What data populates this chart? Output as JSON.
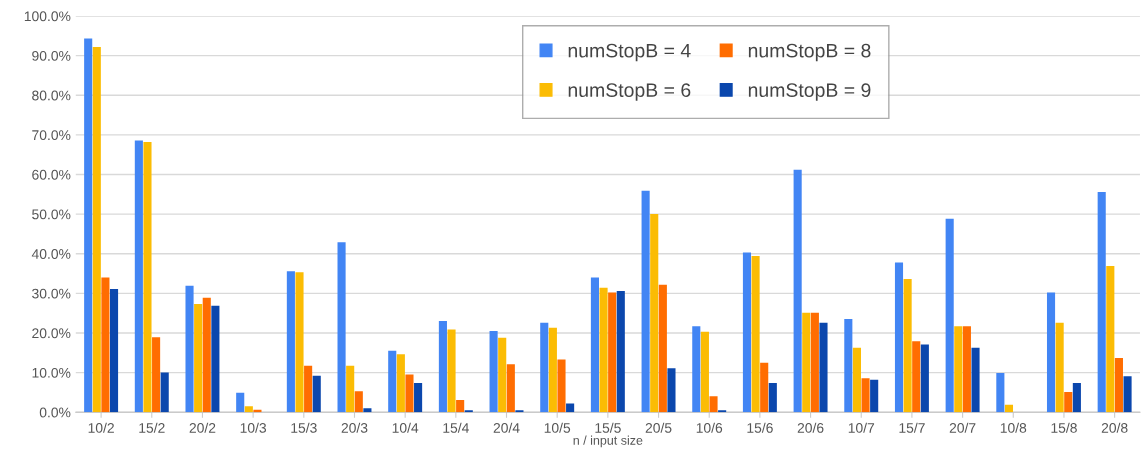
{
  "chart_data": {
    "type": "bar",
    "xlabel": "n / input size",
    "categories": [
      "10/2",
      "15/2",
      "20/2",
      "10/3",
      "15/3",
      "20/3",
      "10/4",
      "15/4",
      "20/4",
      "10/5",
      "15/5",
      "20/5",
      "10/6",
      "15/6",
      "20/6",
      "10/7",
      "15/7",
      "20/7",
      "10/8",
      "15/8",
      "20/8"
    ],
    "series": [
      {
        "name": "numStopB = 4",
        "color": "#4285f4",
        "values": [
          94.3,
          68.6,
          31.9,
          4.9,
          35.6,
          42.9,
          15.5,
          23.0,
          20.5,
          22.6,
          34.0,
          55.9,
          21.7,
          40.3,
          61.2,
          23.5,
          37.8,
          48.8,
          9.9,
          30.2,
          55.6
        ]
      },
      {
        "name": "numStopB = 6",
        "color": "#fbbc04",
        "values": [
          92.2,
          68.2,
          27.3,
          1.5,
          35.3,
          11.7,
          14.6,
          20.9,
          18.8,
          21.3,
          31.4,
          50.0,
          20.3,
          39.4,
          25.1,
          16.3,
          33.6,
          21.7,
          1.9,
          22.6,
          36.9
        ]
      },
      {
        "name": "numStopB = 8",
        "color": "#ff6d01",
        "values": [
          34.0,
          18.9,
          28.9,
          0.6,
          11.7,
          5.3,
          9.5,
          3.1,
          12.1,
          13.3,
          30.2,
          32.2,
          4.0,
          12.5,
          25.1,
          8.6,
          17.9,
          21.7,
          0,
          5.1,
          13.7
        ]
      },
      {
        "name": "numStopB = 9",
        "color": "#0b47ad",
        "values": [
          31.1,
          10.0,
          26.9,
          0,
          9.2,
          1.0,
          7.4,
          0.5,
          0.5,
          2.2,
          30.6,
          11.1,
          0.5,
          7.4,
          22.6,
          8.2,
          17.1,
          16.3,
          0,
          7.4,
          9.1
        ]
      }
    ],
    "ylim": [
      0,
      100
    ],
    "yticks": [
      {
        "value": 0,
        "label": "0.0%"
      },
      {
        "value": 10,
        "label": "10.0%"
      },
      {
        "value": 20,
        "label": "20.0%"
      },
      {
        "value": 30,
        "label": "30.0%"
      },
      {
        "value": 40,
        "label": "40.0%"
      },
      {
        "value": 50,
        "label": "50.0%"
      },
      {
        "value": 60,
        "label": "60.0%"
      },
      {
        "value": 70,
        "label": "70.0%"
      },
      {
        "value": 80,
        "label": "80.0%"
      },
      {
        "value": 90,
        "label": "90.0%"
      },
      {
        "value": 100,
        "label": "100.0%"
      }
    ],
    "grid": "y",
    "legend": "top"
  }
}
